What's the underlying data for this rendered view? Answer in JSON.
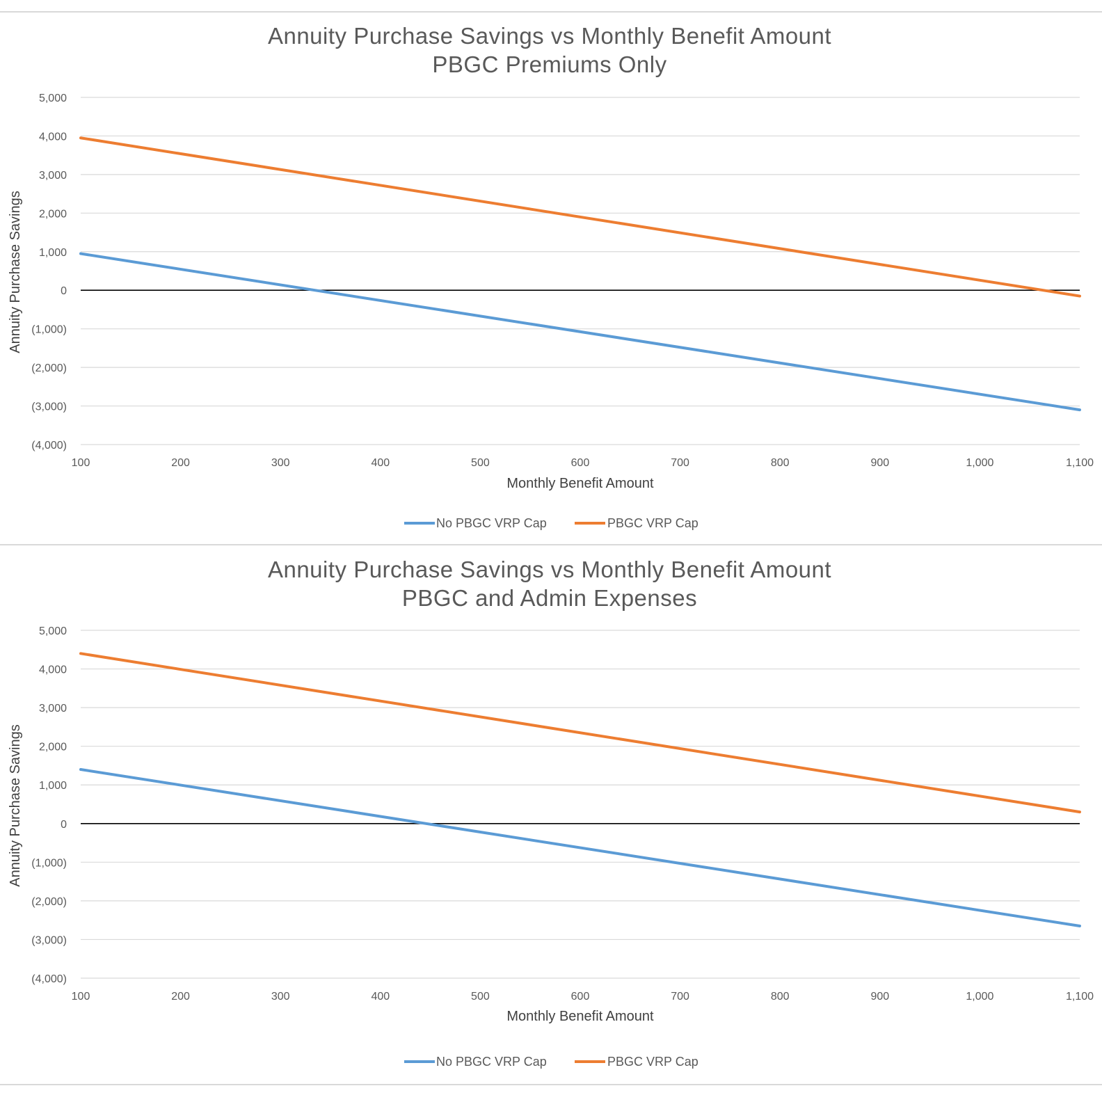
{
  "colors": {
    "no_cap": "#5b9bd5",
    "cap": "#ed7d31",
    "grid": "#d9d9d9",
    "zero_line": "#000000",
    "text": "#595959"
  },
  "chart_data": [
    {
      "type": "line",
      "title": "Annuity Purchase Savings vs Monthly Benefit Amount",
      "subtitle": "PBGC Premiums Only",
      "xlabel": "Monthly Benefit Amount",
      "ylabel": "Annuity Purchase Savings",
      "xlim": [
        100,
        1100
      ],
      "ylim": [
        -4000,
        5000
      ],
      "x_ticks": [
        100,
        200,
        300,
        400,
        500,
        600,
        700,
        800,
        900,
        1000,
        1100
      ],
      "x_tick_labels": [
        "100",
        "200",
        "300",
        "400",
        "500",
        "600",
        "700",
        "800",
        "900",
        "1,000",
        "1,100"
      ],
      "y_ticks": [
        5000,
        4000,
        3000,
        2000,
        1000,
        0,
        -1000,
        -2000,
        -3000,
        -4000
      ],
      "y_tick_labels": [
        "5,000",
        "4,000",
        "3,000",
        "2,000",
        "1,000",
        "0",
        "(1,000)",
        "(2,000)",
        "(3,000)",
        "(4,000)"
      ],
      "grid": true,
      "legend_position": "bottom",
      "series": [
        {
          "name": "No PBGC VRP Cap",
          "color_key": "no_cap",
          "x": [
            100,
            1100
          ],
          "values": [
            950,
            -3100
          ]
        },
        {
          "name": "PBGC VRP Cap",
          "color_key": "cap",
          "x": [
            100,
            1100
          ],
          "values": [
            3950,
            -150
          ]
        }
      ]
    },
    {
      "type": "line",
      "title": "Annuity Purchase Savings vs Monthly Benefit Amount",
      "subtitle": "PBGC and Admin Expenses",
      "xlabel": "Monthly Benefit Amount",
      "ylabel": "Annuity Purchase Savings",
      "xlim": [
        100,
        1100
      ],
      "ylim": [
        -4000,
        5000
      ],
      "x_ticks": [
        100,
        200,
        300,
        400,
        500,
        600,
        700,
        800,
        900,
        1000,
        1100
      ],
      "x_tick_labels": [
        "100",
        "200",
        "300",
        "400",
        "500",
        "600",
        "700",
        "800",
        "900",
        "1,000",
        "1,100"
      ],
      "y_ticks": [
        5000,
        4000,
        3000,
        2000,
        1000,
        0,
        -1000,
        -2000,
        -3000,
        -4000
      ],
      "y_tick_labels": [
        "5,000",
        "4,000",
        "3,000",
        "2,000",
        "1,000",
        "0",
        "(1,000)",
        "(2,000)",
        "(3,000)",
        "(4,000)"
      ],
      "grid": true,
      "legend_position": "bottom",
      "series": [
        {
          "name": "No PBGC VRP Cap",
          "color_key": "no_cap",
          "x": [
            100,
            1100
          ],
          "values": [
            1400,
            -2650
          ]
        },
        {
          "name": "PBGC VRP Cap",
          "color_key": "cap",
          "x": [
            100,
            1100
          ],
          "values": [
            4400,
            300
          ]
        }
      ]
    }
  ]
}
